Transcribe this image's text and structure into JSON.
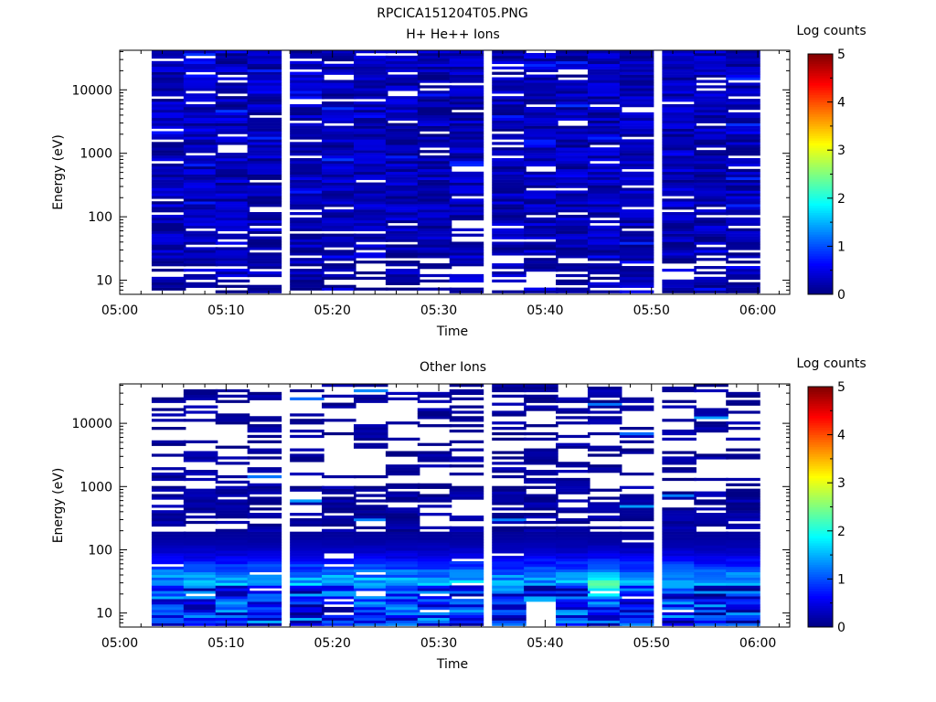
{
  "page_title": "RPCICA151204T05.PNG",
  "chart_data": [
    {
      "type": "heatmap",
      "title": "H+ He++ Ions",
      "xlabel": "Time",
      "ylabel": "Energy (eV)",
      "x_ticks": [
        "05:00",
        "05:10",
        "05:20",
        "05:30",
        "05:40",
        "05:50",
        "06:00"
      ],
      "xlim": [
        "05:00",
        "06:03"
      ],
      "y_scale": "log",
      "y_ticks": [
        "10",
        "100",
        "1000",
        "10000"
      ],
      "ylim": [
        6,
        42000
      ],
      "x_bin_starts": [
        "05:03",
        "05:06",
        "05:09",
        "05:12",
        "05:16",
        "05:19",
        "05:22",
        "05:25",
        "05:28",
        "05:31",
        "05:35",
        "05:38",
        "05:41",
        "05:44",
        "05:47",
        "05:51",
        "05:54",
        "05:57"
      ],
      "x_bin_minutes": 3.2,
      "energy_min_eV": 6.3,
      "energy_max_eV": 42000,
      "energy_bins": 90,
      "intensity_range_log_counts": [
        0,
        1.2
      ],
      "peak_log_counts": 1.2,
      "colorbar": {
        "label": "Log counts",
        "min": 0,
        "max": 5,
        "ticks": [
          "0",
          "1",
          "2",
          "3",
          "4",
          "5"
        ],
        "colormap": "jet"
      }
    },
    {
      "type": "heatmap",
      "title": "Other Ions",
      "xlabel": "Time",
      "ylabel": "Energy (eV)",
      "x_ticks": [
        "05:00",
        "05:10",
        "05:20",
        "05:30",
        "05:40",
        "05:50",
        "06:00"
      ],
      "xlim": [
        "05:00",
        "06:03"
      ],
      "y_scale": "log",
      "y_ticks": [
        "10",
        "100",
        "1000",
        "10000"
      ],
      "ylim": [
        6,
        42000
      ],
      "x_bin_starts": [
        "05:03",
        "05:06",
        "05:09",
        "05:12",
        "05:16",
        "05:19",
        "05:22",
        "05:25",
        "05:28",
        "05:31",
        "05:35",
        "05:38",
        "05:41",
        "05:44",
        "05:47",
        "05:51",
        "05:54",
        "05:57"
      ],
      "x_bin_minutes": 3.2,
      "energy_min_eV": 6.3,
      "energy_max_eV": 42000,
      "energy_bins": 90,
      "intensity_range_log_counts": [
        0,
        2.6
      ],
      "peak_log_counts": 2.6,
      "peak_time": "05:46",
      "peak_energy_eV": 25,
      "colorbar": {
        "label": "Log counts",
        "min": 0,
        "max": 5,
        "ticks": [
          "0",
          "1",
          "2",
          "3",
          "4",
          "5"
        ],
        "colormap": "jet"
      }
    }
  ]
}
